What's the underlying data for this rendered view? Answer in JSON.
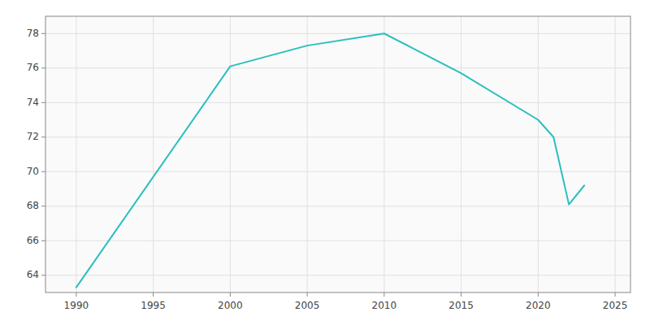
{
  "chart_data": {
    "type": "line",
    "x": [
      1990,
      2000,
      2005,
      2010,
      2015,
      2020,
      2021,
      2022,
      2023
    ],
    "values": [
      63.3,
      76.1,
      77.3,
      78.0,
      75.7,
      73.0,
      72.0,
      68.1,
      69.2
    ],
    "color": "#2abfbf",
    "xlim": [
      1988,
      2026
    ],
    "ylim": [
      63,
      79
    ],
    "xticks": [
      1990,
      1995,
      2000,
      2005,
      2010,
      2015,
      2020,
      2025
    ],
    "yticks": [
      64,
      66,
      68,
      70,
      72,
      74,
      76,
      78
    ],
    "grid": true
  }
}
